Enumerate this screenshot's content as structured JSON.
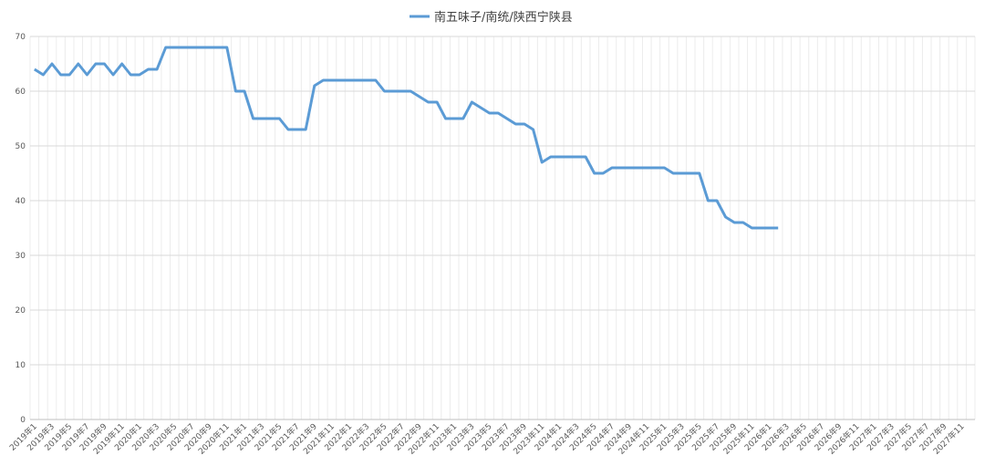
{
  "chart_data": {
    "type": "line",
    "categories": [
      "2019年1",
      null,
      "2019年3",
      null,
      "2019年5",
      null,
      "2019年7",
      null,
      "2019年9",
      null,
      "2019年11",
      null,
      "2020年1",
      null,
      "2020年3",
      null,
      "2020年5",
      null,
      "2020年7",
      null,
      "2020年9",
      null,
      "2020年11",
      null,
      "2021年1",
      null,
      "2021年3",
      null,
      "2021年5",
      null,
      "2021年7",
      null,
      "2021年9",
      null,
      "2021年11",
      null,
      "2022年1",
      null,
      "2022年3",
      null,
      "2022年5",
      null,
      "2022年7",
      null,
      "2022年9",
      null,
      "2022年11",
      null,
      "2023年1",
      null,
      "2023年3",
      null,
      "2023年5",
      null,
      "2023年7",
      null,
      "2023年9",
      null,
      "2023年11",
      null,
      "2024年1",
      null,
      "2024年3",
      null,
      "2024年5",
      null,
      "2024年7",
      null,
      "2024年9",
      null,
      "2024年11",
      null,
      "2025年1",
      null,
      "2025年3",
      null,
      "2025年5",
      null,
      "2025年7",
      null,
      "2025年9",
      null,
      "2025年11",
      null,
      "2026年1",
      null,
      "2026年3",
      null,
      "2026年5",
      null,
      "2026年7",
      null,
      "2026年9",
      null,
      "2026年11",
      null,
      "2027年1",
      null,
      "2027年3",
      null,
      "2027年5",
      null,
      "2027年7",
      null,
      "2027年9",
      null,
      "2027年11",
      null
    ],
    "series": [
      {
        "name": "南五味子/南统/陕西宁陕县",
        "color": "#5b9bd5",
        "values": [
          64,
          63,
          65,
          63,
          63,
          65,
          63,
          65,
          65,
          63,
          65,
          63,
          63,
          64,
          64,
          68,
          68,
          68,
          68,
          68,
          68,
          68,
          68,
          60,
          60,
          55,
          55,
          55,
          55,
          53,
          53,
          53,
          61,
          62,
          62,
          62,
          62,
          62,
          62,
          62,
          60,
          60,
          60,
          60,
          59,
          58,
          58,
          55,
          55,
          55,
          58,
          57,
          56,
          56,
          55,
          54,
          54,
          53,
          47,
          48,
          48,
          48,
          48,
          48,
          45,
          45,
          46,
          46,
          46,
          46,
          46,
          46,
          46,
          45,
          45,
          45,
          45,
          40,
          40,
          37,
          36,
          36,
          35,
          35,
          35,
          35,
          null,
          null,
          null,
          null,
          null,
          null,
          null,
          null,
          null,
          null,
          null,
          null,
          null,
          null,
          null,
          null,
          null,
          null,
          null,
          null,
          null,
          null
        ]
      }
    ],
    "ylim": [
      0,
      70
    ],
    "yticks": [
      0,
      10,
      20,
      30,
      40,
      50,
      60,
      70
    ],
    "grid": true,
    "legend": "top"
  }
}
